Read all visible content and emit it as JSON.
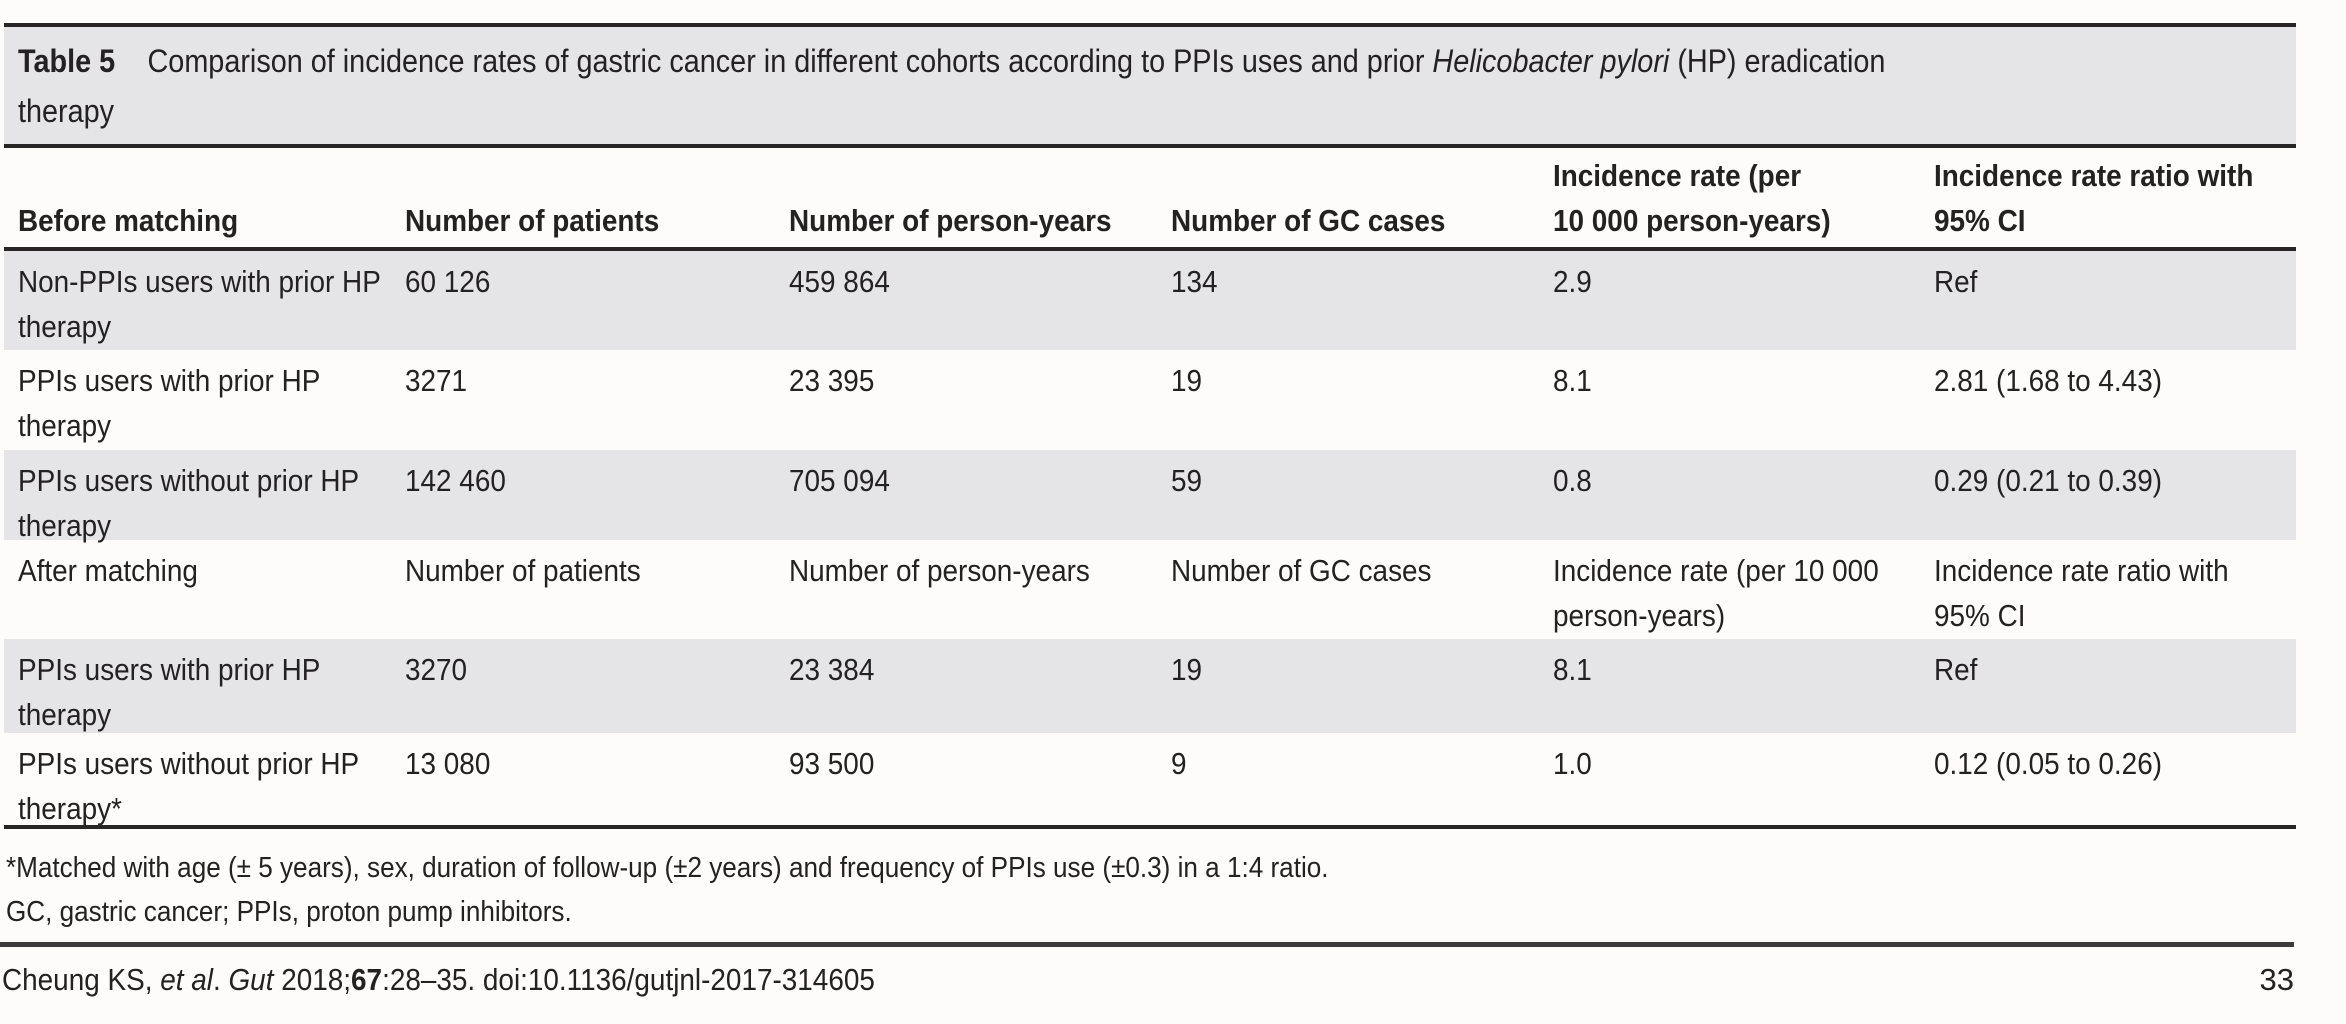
{
  "title": {
    "label": "Table 5",
    "text": "Comparison of incidence rates of gastric cancer in different cohorts according to PPIs uses and prior ",
    "italic": "Helicobacter pylori",
    "suffix": " (HP) eradication\ntherapy"
  },
  "table": {
    "rows": [
      {
        "cells": [
          "Before matching",
          "Number of patients",
          "Number of person-years",
          "Number of GC cases",
          "Incidence rate (per\n10 000 person-years)",
          "Incidence rate ratio with\n95% CI"
        ]
      },
      {
        "cells": [
          "Non-PPIs users with prior HP\ntherapy",
          "60 126",
          "459 864",
          "134",
          "2.9",
          "Ref"
        ]
      },
      {
        "cells": [
          "PPIs users with prior HP\ntherapy",
          "3271",
          "23 395",
          "19",
          "8.1",
          "2.81 (1.68 to 4.43)"
        ]
      },
      {
        "cells": [
          "PPIs users without prior HP\ntherapy",
          "142 460",
          "705 094",
          "59",
          "0.8",
          "0.29 (0.21 to 0.39)"
        ]
      },
      {
        "cells": [
          "After matching",
          "Number of patients",
          "Number of person-years",
          "Number of GC cases",
          "Incidence rate (per 10 000\nperson-years)",
          "Incidence rate ratio with\n95% CI"
        ]
      },
      {
        "cells": [
          "PPIs users with prior HP\ntherapy",
          "3270",
          "23 384",
          "19",
          "8.1",
          "Ref"
        ]
      },
      {
        "cells": [
          "PPIs users without prior HP\ntherapy*",
          "13 080",
          "93 500",
          "9",
          "1.0",
          "0.12 (0.05 to 0.26)"
        ]
      }
    ]
  },
  "footnotes": {
    "matching": "*Matched with age (± 5 years), sex, duration of follow-up (±2 years) and frequency of PPIs use (±0.3) in a 1:4 ratio.",
    "abbreviations": "GC, gastric cancer; PPIs, proton pump inhibitors."
  },
  "credit": {
    "authors": "Cheung KS, ",
    "etal": "et al",
    "sep1": ". ",
    "journal": "Gut",
    "sep2": " 2018;",
    "volume": "67",
    "rest": ":28–35. doi:10.1136/gutjnl-2017-314605"
  },
  "page": {
    "number": "33"
  },
  "colors": {
    "shade_gray": "#e5e4e6",
    "border_black": "#282526",
    "rule_gray": "#3d3a3b",
    "background": "#fdfcfa"
  }
}
